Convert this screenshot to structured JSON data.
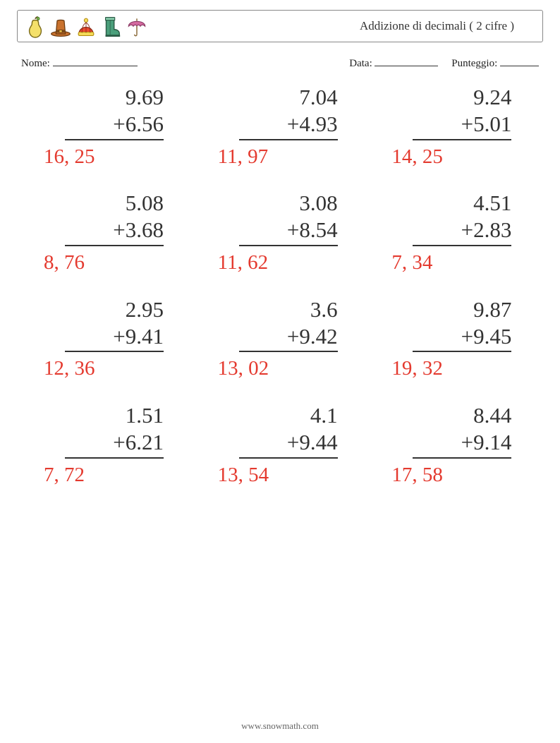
{
  "header": {
    "title": "Addizione di decimali ( 2 cifre )",
    "icons": [
      "pear-icon",
      "hat-icon",
      "beanie-icon",
      "boot-icon",
      "umbrella-icon"
    ]
  },
  "info": {
    "name_label": "Nome:",
    "date_label": "Data:",
    "score_label": "Punteggio:"
  },
  "style": {
    "answer_color": "#e43a2f",
    "text_color": "#333333",
    "number_fontsize": 31,
    "answer_fontsize": 29,
    "answer_font": "Comic Sans MS",
    "number_font": "Georgia",
    "border_color": "#888888",
    "background": "#ffffff",
    "grid_columns": 3,
    "grid_rows": 4
  },
  "problems": [
    {
      "a": "9.69",
      "b": "+6.56",
      "ans": "16, 25"
    },
    {
      "a": "7.04",
      "b": "+4.93",
      "ans": "11, 97"
    },
    {
      "a": "9.24",
      "b": "+5.01",
      "ans": "14, 25"
    },
    {
      "a": "5.08",
      "b": "+3.68",
      "ans": "8, 76"
    },
    {
      "a": "3.08",
      "b": "+8.54",
      "ans": "11, 62"
    },
    {
      "a": "4.51",
      "b": "+2.83",
      "ans": "7, 34"
    },
    {
      "a": "2.95",
      "b": "+9.41",
      "ans": "12, 36"
    },
    {
      "a": "3.6",
      "b": "+9.42",
      "ans": "13, 02"
    },
    {
      "a": "9.87",
      "b": "+9.45",
      "ans": "19, 32"
    },
    {
      "a": "1.51",
      "b": "+6.21",
      "ans": "7, 72"
    },
    {
      "a": "4.1",
      "b": "+9.44",
      "ans": "13, 54"
    },
    {
      "a": "8.44",
      "b": "+9.14",
      "ans": "17, 58"
    }
  ],
  "footer": "www.snowmath.com"
}
